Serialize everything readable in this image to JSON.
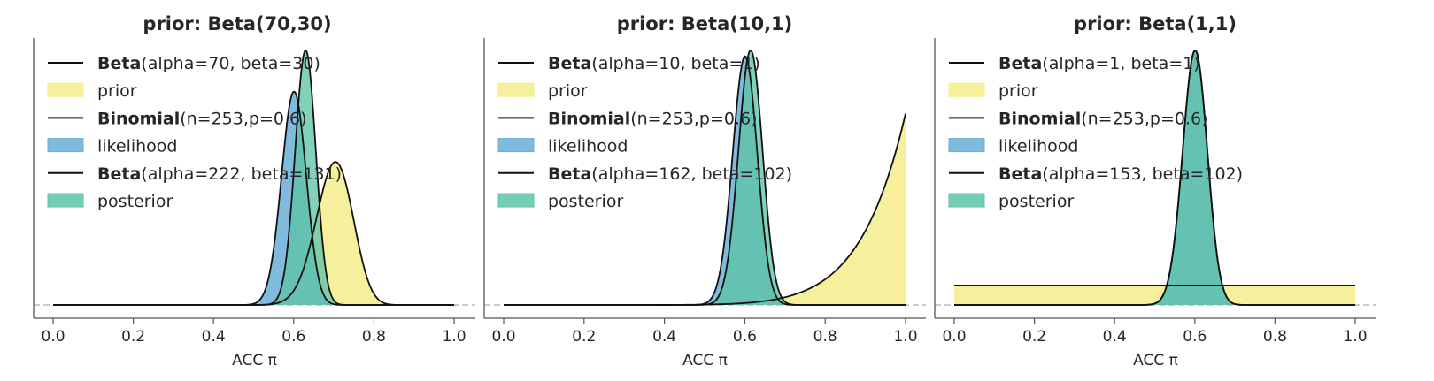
{
  "chart_data": [
    {
      "type": "area",
      "title": "prior: Beta(70,30)",
      "xlabel": "ACC π",
      "xlim": [
        0.0,
        1.0
      ],
      "xticks": [
        "0.0",
        "0.2",
        "0.4",
        "0.6",
        "0.8",
        "1.0"
      ],
      "prior": {
        "dist": "beta",
        "alpha": 70,
        "beta": 30
      },
      "likelihood": {
        "dist": "binomial",
        "n": 253,
        "p": 0.6
      },
      "posterior": {
        "dist": "beta",
        "alpha": 222,
        "beta": 131
      },
      "legend": [
        {
          "kind": "line",
          "bold": "Beta",
          "rest": "(alpha=70, beta=30)"
        },
        {
          "kind": "patch",
          "series": "prior",
          "label": "prior"
        },
        {
          "kind": "line",
          "bold": "Binomial",
          "rest": "(n=253,p=0.6)"
        },
        {
          "kind": "patch",
          "series": "likelihood",
          "label": "likelihood"
        },
        {
          "kind": "line",
          "bold": "Beta",
          "rest": "(alpha=222, beta=131)"
        },
        {
          "kind": "patch",
          "series": "posterior",
          "label": "posterior"
        }
      ]
    },
    {
      "type": "area",
      "title": "prior: Beta(10,1)",
      "xlabel": "ACC π",
      "xlim": [
        0.0,
        1.0
      ],
      "xticks": [
        "0.0",
        "0.2",
        "0.4",
        "0.6",
        "0.8",
        "1.0"
      ],
      "prior": {
        "dist": "beta",
        "alpha": 10,
        "beta": 1
      },
      "likelihood": {
        "dist": "binomial",
        "n": 253,
        "p": 0.6
      },
      "posterior": {
        "dist": "beta",
        "alpha": 162,
        "beta": 102
      },
      "legend": [
        {
          "kind": "line",
          "bold": "Beta",
          "rest": "(alpha=10, beta=1)"
        },
        {
          "kind": "patch",
          "series": "prior",
          "label": "prior"
        },
        {
          "kind": "line",
          "bold": "Binomial",
          "rest": "(n=253,p=0.6)"
        },
        {
          "kind": "patch",
          "series": "likelihood",
          "label": "likelihood"
        },
        {
          "kind": "line",
          "bold": "Beta",
          "rest": "(alpha=162, beta=102)"
        },
        {
          "kind": "patch",
          "series": "posterior",
          "label": "posterior"
        }
      ]
    },
    {
      "type": "area",
      "title": "prior: Beta(1,1)",
      "xlabel": "ACC π",
      "xlim": [
        0.0,
        1.0
      ],
      "xticks": [
        "0.0",
        "0.2",
        "0.4",
        "0.6",
        "0.8",
        "1.0"
      ],
      "prior": {
        "dist": "beta",
        "alpha": 1,
        "beta": 1
      },
      "likelihood": {
        "dist": "binomial",
        "n": 253,
        "p": 0.6
      },
      "posterior": {
        "dist": "beta",
        "alpha": 153,
        "beta": 102
      },
      "legend": [
        {
          "kind": "line",
          "bold": "Beta",
          "rest": "(alpha=1, beta=1)"
        },
        {
          "kind": "patch",
          "series": "prior",
          "label": "prior"
        },
        {
          "kind": "line",
          "bold": "Binomial",
          "rest": "(n=253,p=0.6)"
        },
        {
          "kind": "patch",
          "series": "likelihood",
          "label": "likelihood"
        },
        {
          "kind": "line",
          "bold": "Beta",
          "rest": "(alpha=153, beta=102)"
        },
        {
          "kind": "patch",
          "series": "posterior",
          "label": "posterior"
        }
      ]
    }
  ],
  "colors": {
    "prior": "#f5ec89",
    "likelihood": "#6aaed6",
    "posterior": "#5ec4a8",
    "overlap": "#3aa89a",
    "curve": "#111111",
    "axis": "#555555",
    "baseline": "#bbbbbb"
  }
}
